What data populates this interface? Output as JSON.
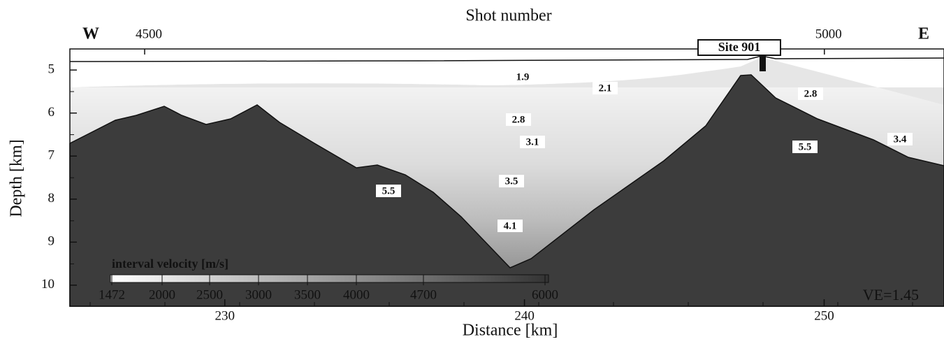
{
  "figure": {
    "top_title": "Shot number",
    "west_label": "W",
    "east_label": "E",
    "site_label": "Site 901",
    "ve_label": "VE=1.45",
    "x_axis": {
      "label": "Distance [km]",
      "lim": [
        224.83,
        254
      ],
      "ticks": [
        230,
        240,
        250
      ]
    },
    "top_axis": {
      "lim": [
        4445,
        5088
      ],
      "ticks": [
        4500,
        5000
      ]
    },
    "y_axis": {
      "label": "Depth [km]",
      "lim": [
        4.51,
        10.49
      ],
      "ticks": [
        5,
        6,
        7,
        8,
        9,
        10
      ]
    },
    "velocity_labels": [
      "1.9",
      "2.1",
      "2.8",
      "3.1",
      "3.5",
      "4.1",
      "5.5",
      "5.5",
      "2.8",
      "3.4"
    ],
    "colorbar": {
      "title": "interval velocity [m/s]",
      "ticks": [
        "1472",
        "2000",
        "2500",
        "3000",
        "3500",
        "4000",
        "4700",
        "6000"
      ]
    }
  }
}
